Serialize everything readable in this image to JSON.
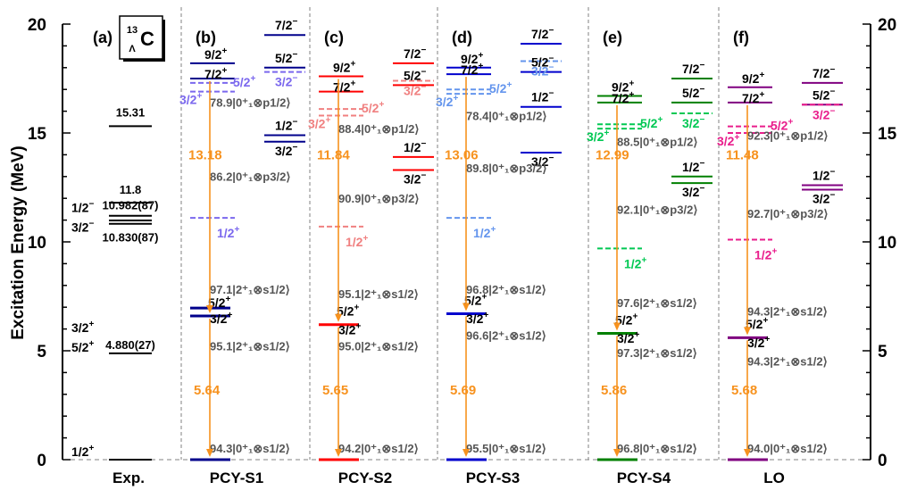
{
  "chart_data": {
    "type": "level-scheme",
    "ylabel": "Excitation Energy (MeV)",
    "ylim": [
      0,
      20
    ],
    "yticks": [
      "0",
      "5",
      "10",
      "15",
      "20"
    ],
    "nucleus": {
      "A": "13",
      "sub": "Λ",
      "sym": "C"
    },
    "colors": {
      "exp": "#000000",
      "arrow": "#f7921e",
      "dashed_axis": "#808080",
      "S1": "#00008b",
      "S1_light": "#7b68ee",
      "S2": "#ff0000",
      "S2_light": "#f08080",
      "S3": "#0000cd",
      "S3_light": "#6495ed",
      "S4": "#008000",
      "S4_light": "#00c853",
      "LO": "#800080",
      "LO_light": "#e91e8c"
    },
    "panels": [
      {
        "tag": "(a)",
        "xlabel": "Exp.",
        "levels": [
          {
            "e": 0.0,
            "label": ""
          },
          {
            "e": 4.88,
            "label": "4.880(27)"
          },
          {
            "e": 10.83,
            "label": "10.830(87)"
          },
          {
            "e": 10.982,
            "label": "10.982(87)"
          },
          {
            "e": 11.2,
            "label": ""
          },
          {
            "e": 11.8,
            "label": "11.8"
          },
          {
            "e": 15.31,
            "label": "15.31"
          }
        ],
        "spins": [
          {
            "e": 0.0,
            "label": "1/2",
            "par": "+"
          },
          {
            "e": 4.8,
            "label": "5/2",
            "par": "+"
          },
          {
            "e": 5.7,
            "label": "3/2",
            "par": "+"
          },
          {
            "e": 10.3,
            "label": "3/2",
            "par": "−"
          },
          {
            "e": 11.2,
            "label": "1/2",
            "par": "−"
          }
        ]
      },
      {
        "tag": "(b)",
        "xlabel": "PCY-S1",
        "key": "S1",
        "ground": {
          "e": 0.0,
          "comp": "94.3|0⁺₁⊗s1/2⟩"
        },
        "gs_levels": [
          6.6,
          6.8
        ],
        "gs_spins": [
          {
            "e": 7.1,
            "label": "5/2",
            "par": "+"
          },
          {
            "e": 6.1,
            "label": "3/2",
            "par": "+"
          }
        ],
        "comp_2p": [
          {
            "e": 7.7,
            "text": "97.1|2⁺₁⊗s1/2⟩"
          },
          {
            "e": 5.1,
            "text": "95.1|2⁺₁⊗s1/2⟩"
          }
        ],
        "half": {
          "e": 11.1,
          "label": "1/2",
          "par": "+"
        },
        "p_levels": [
          {
            "e": 18.2,
            "label": "9/2",
            "par": "+"
          },
          {
            "e": 17.5,
            "label": "7/2",
            "par": "+"
          }
        ],
        "p_dashed": [
          {
            "e": 17.3,
            "label": "5/2",
            "par": "+"
          },
          {
            "e": 16.9,
            "label": "3/2",
            "par": "+"
          }
        ],
        "right_levels": [
          {
            "e": 19.5,
            "label": "7/2",
            "par": "−"
          },
          {
            "e": 18.0,
            "label": "5/2",
            "par": "−"
          },
          {
            "e": 14.9,
            "label": "1/2",
            "par": "−"
          },
          {
            "e": 14.6,
            "label": "3/2",
            "par": "−"
          }
        ],
        "right_dashed": [
          {
            "e": 17.8,
            "label": "3/2",
            "par": "−"
          }
        ],
        "comp_p": [
          {
            "e": 16.2,
            "text": "78.9|0⁺₁⊗p1/2⟩"
          },
          {
            "e": 12.8,
            "text": "86.2|0⁺₁⊗p3/2⟩"
          }
        ],
        "gap_upper": "13.18",
        "gap_lower": "5.64",
        "upper_e": 17.5,
        "mid_e": 6.6
      },
      {
        "tag": "(c)",
        "xlabel": "PCY-S2",
        "key": "S2",
        "ground": {
          "e": 0.0,
          "comp": "94.2|0⁺₁⊗s1/2⟩"
        },
        "gs_levels": [
          6.2
        ],
        "gs_spins": [
          {
            "e": 6.7,
            "label": "5/2",
            "par": "+"
          },
          {
            "e": 5.6,
            "label": "3/2",
            "par": "+"
          }
        ],
        "comp_2p": [
          {
            "e": 7.5,
            "text": "95.1|2⁺₁⊗s1/2⟩"
          },
          {
            "e": 5.1,
            "text": "95.0|2⁺₁⊗s1/2⟩"
          }
        ],
        "half": {
          "e": 10.7,
          "label": "1/2",
          "par": "+"
        },
        "p_levels": [
          {
            "e": 17.6,
            "label": "9/2",
            "par": "+"
          },
          {
            "e": 16.9,
            "label": "7/2",
            "par": "+"
          }
        ],
        "p_dashed": [
          {
            "e": 16.1,
            "label": "5/2",
            "par": "+"
          },
          {
            "e": 15.8,
            "label": "3/2",
            "par": "+"
          }
        ],
        "right_levels": [
          {
            "e": 18.2,
            "label": "7/2",
            "par": "−"
          },
          {
            "e": 17.2,
            "label": "5/2",
            "par": "−"
          },
          {
            "e": 13.9,
            "label": "1/2",
            "par": "−"
          },
          {
            "e": 13.3,
            "label": "3/2",
            "par": "−"
          }
        ],
        "right_dashed": [
          {
            "e": 17.4,
            "label": "3/2",
            "par": "−"
          }
        ],
        "comp_p": [
          {
            "e": 15.0,
            "text": "88.4|0⁺₁⊗p1/2⟩"
          },
          {
            "e": 11.8,
            "text": "90.9|0⁺₁⊗p3/2⟩"
          }
        ],
        "gap_upper": "11.84",
        "gap_lower": "5.65",
        "upper_e": 17.6,
        "mid_e": 6.2
      },
      {
        "tag": "(d)",
        "xlabel": "PCY-S3",
        "key": "S3",
        "ground": {
          "e": 0.0,
          "comp": "95.5|0⁺₁⊗s1/2⟩"
        },
        "gs_levels": [
          6.7
        ],
        "gs_spins": [
          {
            "e": 7.2,
            "label": "5/2",
            "par": "+"
          },
          {
            "e": 6.1,
            "label": "3/2",
            "par": "+"
          }
        ],
        "comp_2p": [
          {
            "e": 7.7,
            "text": "96.8|2⁺₁⊗s1/2⟩"
          },
          {
            "e": 5.6,
            "text": "96.6|2⁺₁⊗s1/2⟩"
          }
        ],
        "half": {
          "e": 11.1,
          "label": "1/2",
          "par": "+"
        },
        "p_levels": [
          {
            "e": 18.0,
            "label": "9/2",
            "par": "+"
          },
          {
            "e": 17.7,
            "label": "7/2",
            "par": "+"
          }
        ],
        "p_dashed": [
          {
            "e": 17.0,
            "label": "5/2",
            "par": "+"
          },
          {
            "e": 16.8,
            "label": "3/2",
            "par": "+"
          }
        ],
        "right_levels": [
          {
            "e": 19.1,
            "label": "7/2",
            "par": "−"
          },
          {
            "e": 17.8,
            "label": "5/2",
            "par": "−"
          },
          {
            "e": 16.2,
            "label": "1/2",
            "par": "−"
          },
          {
            "e": 14.1,
            "label": "3/2",
            "par": "−"
          }
        ],
        "right_dashed": [
          {
            "e": 18.3,
            "label": "3/2",
            "par": "−"
          }
        ],
        "comp_p": [
          {
            "e": 15.6,
            "text": "78.4|0⁺₁⊗p1/2⟩"
          },
          {
            "e": 13.2,
            "text": "89.8|0⁺₁⊗p3/2⟩"
          }
        ],
        "gap_upper": "13.06",
        "gap_lower": "5.69",
        "upper_e": 17.7,
        "mid_e": 6.7
      },
      {
        "tag": "(e)",
        "xlabel": "PCY-S4",
        "key": "S4",
        "ground": {
          "e": 0.0,
          "comp": "96.8|0⁺₁⊗s1/2⟩"
        },
        "gs_levels": [
          5.8
        ],
        "gs_spins": [
          {
            "e": 6.3,
            "label": "5/2",
            "par": "+"
          },
          {
            "e": 5.2,
            "label": "3/2",
            "par": "+"
          }
        ],
        "comp_2p": [
          {
            "e": 7.1,
            "text": "97.6|2⁺₁⊗s1/2⟩"
          },
          {
            "e": 4.8,
            "text": "97.3|2⁺₁⊗s1/2⟩"
          }
        ],
        "half": {
          "e": 9.7,
          "label": "1/2",
          "par": "+"
        },
        "p_levels": [
          {
            "e": 16.7,
            "label": "9/2",
            "par": "+"
          },
          {
            "e": 16.4,
            "label": "7/2",
            "par": "+"
          }
        ],
        "p_dashed": [
          {
            "e": 15.4,
            "label": "5/2",
            "par": "+"
          },
          {
            "e": 15.2,
            "label": "3/2",
            "par": "+"
          }
        ],
        "right_levels": [
          {
            "e": 17.5,
            "label": "7/2",
            "par": "−"
          },
          {
            "e": 16.4,
            "label": "5/2",
            "par": "−"
          },
          {
            "e": 13.0,
            "label": "1/2",
            "par": "−"
          },
          {
            "e": 12.7,
            "label": "3/2",
            "par": "−"
          }
        ],
        "right_dashed": [
          {
            "e": 15.9,
            "label": "3/2",
            "par": "−"
          }
        ],
        "comp_p": [
          {
            "e": 14.4,
            "text": "88.5|0⁺₁⊗p1/2⟩"
          },
          {
            "e": 11.3,
            "text": "92.1|0⁺₁⊗p3/2⟩"
          }
        ],
        "gap_upper": "12.99",
        "gap_lower": "5.86",
        "upper_e": 16.4,
        "mid_e": 5.8
      },
      {
        "tag": "(f)",
        "xlabel": "LO",
        "key": "LO",
        "ground": {
          "e": 0.0,
          "comp": "94.0|0⁺₁⊗s1/2⟩"
        },
        "gs_levels": [
          5.6
        ],
        "gs_spins": [
          {
            "e": 6.1,
            "label": "5/2",
            "par": "+"
          },
          {
            "e": 5.0,
            "label": "3/2",
            "par": "+"
          }
        ],
        "comp_2p": [
          {
            "e": 6.7,
            "text": "94.3|2⁺₁⊗s1/2⟩"
          },
          {
            "e": 4.4,
            "text": "94.3|2⁺₁⊗s1/2⟩"
          }
        ],
        "half": {
          "e": 10.1,
          "label": "1/2",
          "par": "+"
        },
        "p_levels": [
          {
            "e": 17.1,
            "label": "9/2",
            "par": "+"
          },
          {
            "e": 16.4,
            "label": "7/2",
            "par": "+"
          }
        ],
        "p_dashed": [
          {
            "e": 15.3,
            "label": "5/2",
            "par": "+"
          },
          {
            "e": 15.0,
            "label": "3/2",
            "par": "+"
          }
        ],
        "right_levels": [
          {
            "e": 17.3,
            "label": "7/2",
            "par": "−"
          },
          {
            "e": 16.3,
            "label": "5/2",
            "par": "−"
          },
          {
            "e": 12.6,
            "label": "1/2",
            "par": "−"
          },
          {
            "e": 12.4,
            "label": "3/2",
            "par": "−"
          }
        ],
        "right_dashed": [
          {
            "e": 16.3,
            "label": "3/2",
            "par": "−"
          }
        ],
        "comp_p": [
          {
            "e": 14.7,
            "text": "92.3|0⁺₁⊗p1/2⟩"
          },
          {
            "e": 11.1,
            "text": "92.7|0⁺₁⊗p3/2⟩"
          }
        ],
        "gap_upper": "11.48",
        "gap_lower": "5.68",
        "upper_e": 16.4,
        "mid_e": 5.6
      }
    ]
  }
}
